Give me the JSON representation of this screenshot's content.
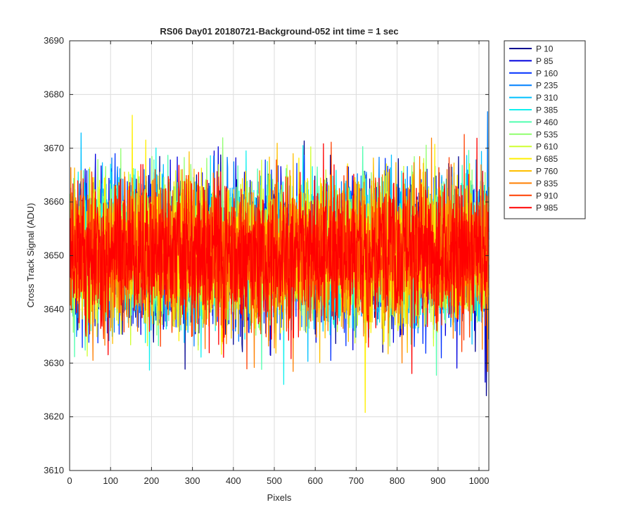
{
  "chart_data": {
    "type": "line",
    "title": "RS06 Day01 20180721-Background-052 int time = 1 sec",
    "xlabel": "Pixels",
    "ylabel": "Cross Track Signal (ADU)",
    "xlim": [
      0,
      1024
    ],
    "ylim": [
      3610,
      3690
    ],
    "xticks": [
      0,
      100,
      200,
      300,
      400,
      500,
      600,
      700,
      800,
      900,
      1000
    ],
    "yticks": [
      3610,
      3620,
      3630,
      3640,
      3650,
      3660,
      3670,
      3680,
      3690
    ],
    "grid": true,
    "legend_position": "outside-top-right",
    "x_range_points": [
      1,
      1024
    ],
    "series": [
      {
        "name": "P 10",
        "color": "#00008f",
        "mean": 3650.5,
        "std": 6.5
      },
      {
        "name": "P 85",
        "color": "#0000df",
        "mean": 3650.5,
        "std": 6.5
      },
      {
        "name": "P 160",
        "color": "#0030ff",
        "mean": 3650.5,
        "std": 6.5
      },
      {
        "name": "P 235",
        "color": "#0080ff",
        "mean": 3650.5,
        "std": 6.5
      },
      {
        "name": "P 310",
        "color": "#00c0ff",
        "mean": 3650.5,
        "std": 6.5
      },
      {
        "name": "P 385",
        "color": "#10f0ef",
        "mean": 3650.5,
        "std": 6.5
      },
      {
        "name": "P 460",
        "color": "#50ffaf",
        "mean": 3650.5,
        "std": 6.5
      },
      {
        "name": "P 535",
        "color": "#90ff6f",
        "mean": 3650.5,
        "std": 6.5
      },
      {
        "name": "P 610",
        "color": "#cfff30",
        "mean": 3650.5,
        "std": 6.5
      },
      {
        "name": "P 685",
        "color": "#ffef00",
        "mean": 3650.5,
        "std": 6.5
      },
      {
        "name": "P 760",
        "color": "#ffbf00",
        "mean": 3650.5,
        "std": 6.5
      },
      {
        "name": "P 835",
        "color": "#ff7f00",
        "mean": 3650.5,
        "std": 6.5
      },
      {
        "name": "P 910",
        "color": "#ff3f00",
        "mean": 3650.5,
        "std": 6.5
      },
      {
        "name": "P 985",
        "color": "#ff0000",
        "mean": 3650.5,
        "std": 6.5
      }
    ]
  }
}
